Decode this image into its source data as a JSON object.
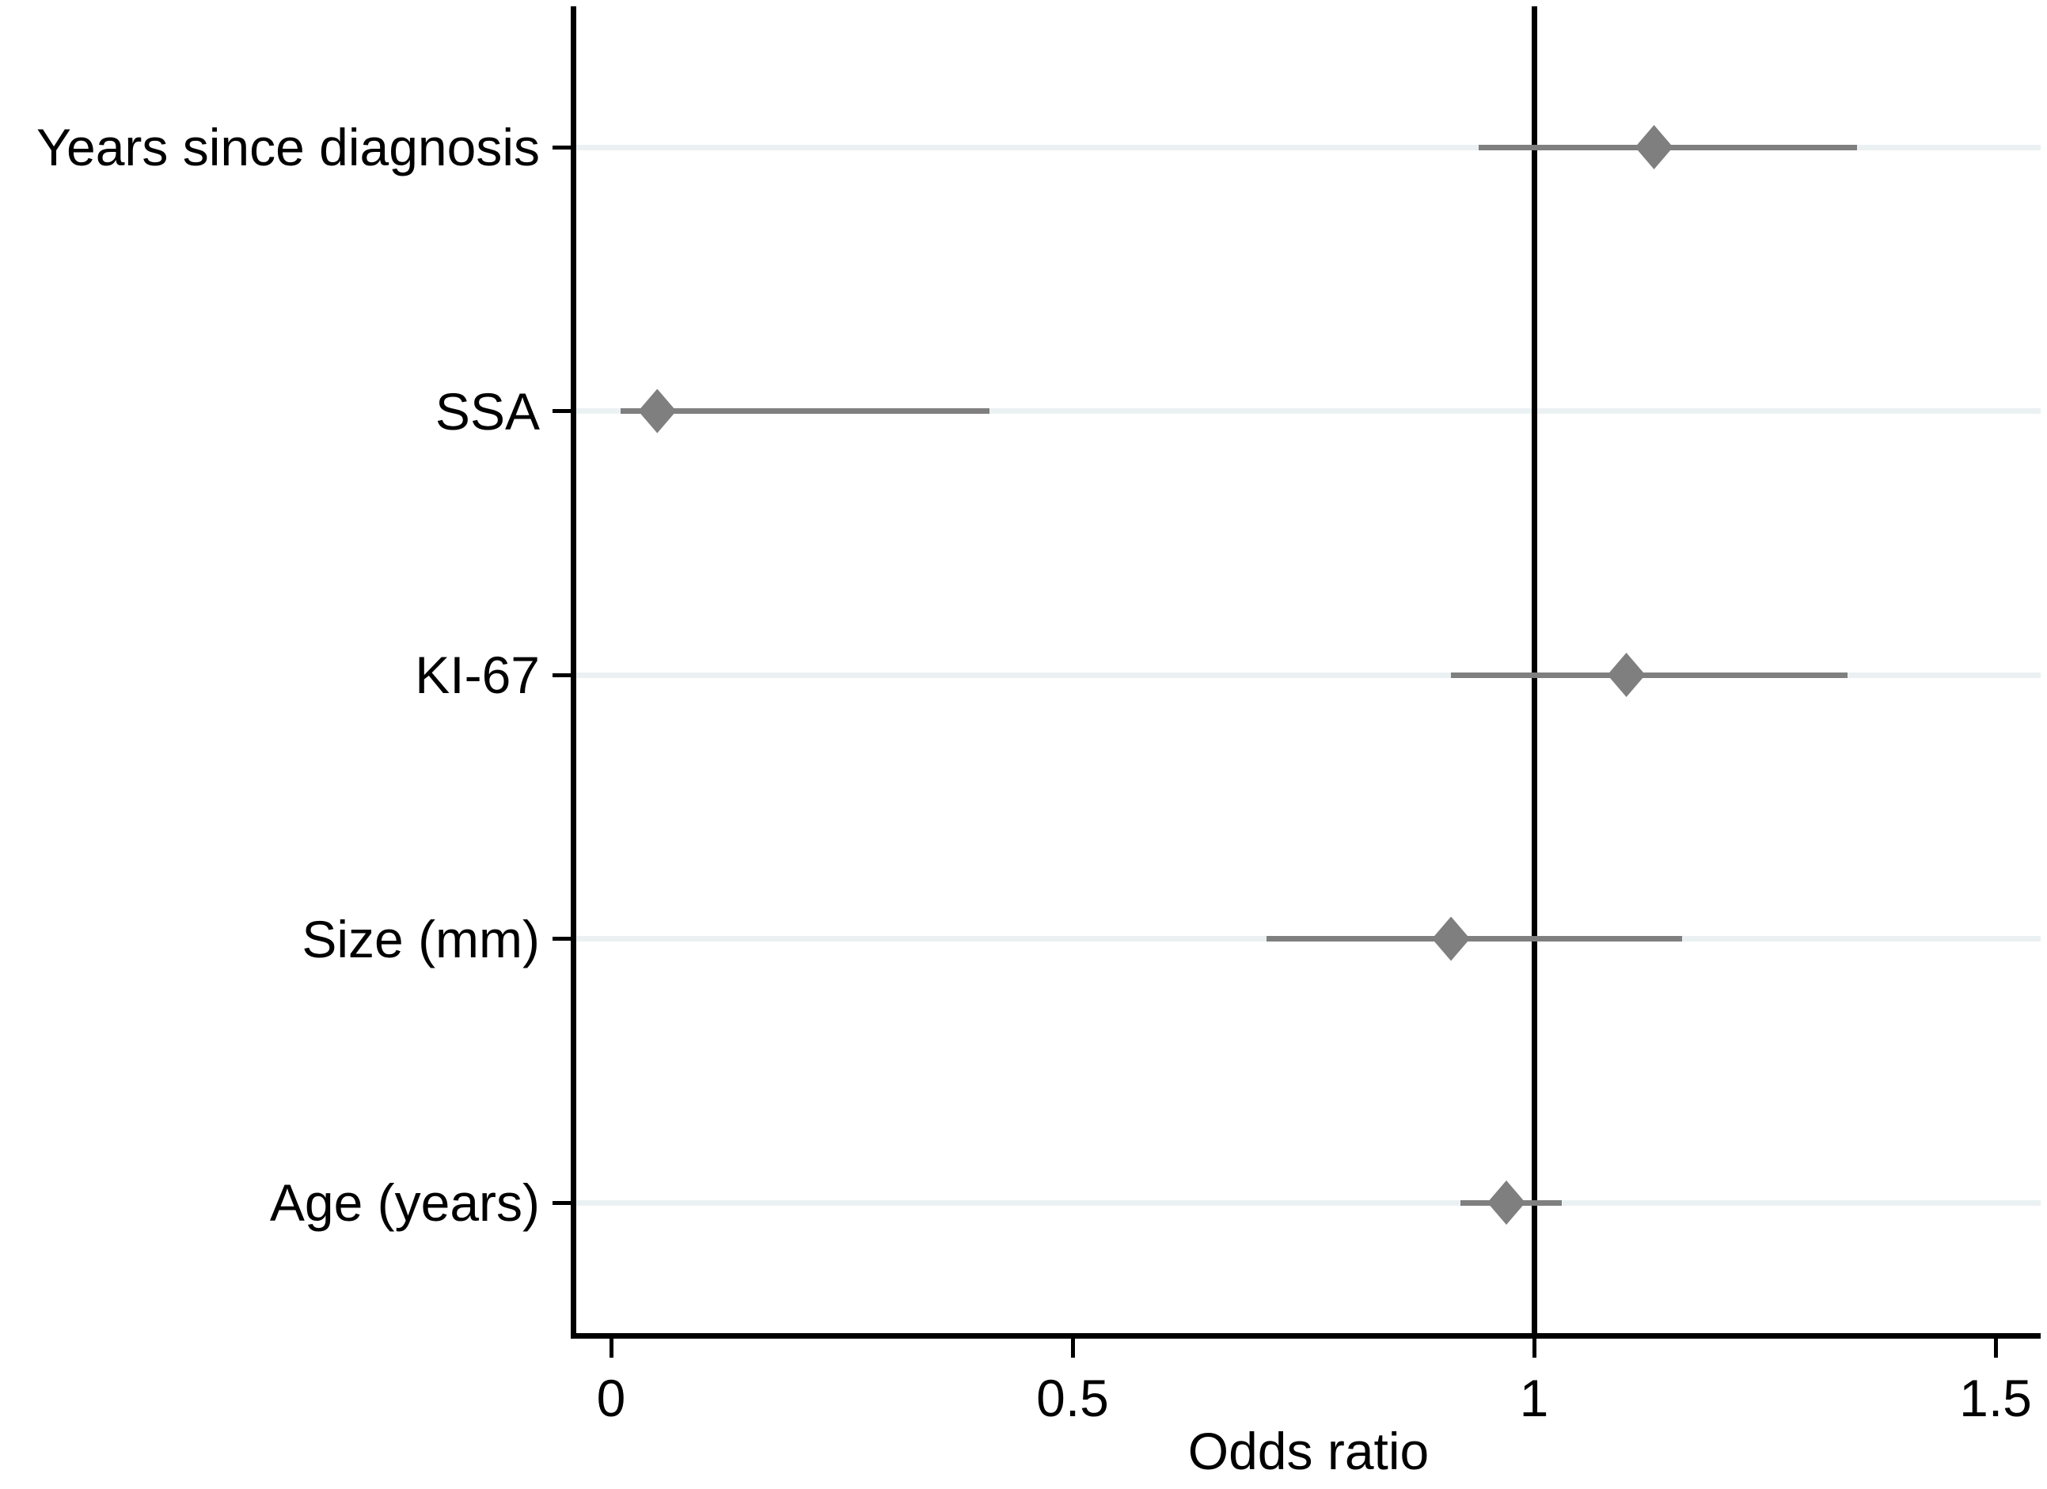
{
  "chart_data": {
    "type": "scatter",
    "subtype": "forest-plot",
    "title": "",
    "xlabel": "Odds ratio",
    "ylabel": "",
    "xlim": [
      -0.04,
      1.55
    ],
    "x_ticks": [
      0,
      0.5,
      1,
      1.5
    ],
    "x_tick_labels": [
      "0",
      "0.5",
      "1",
      "1.5"
    ],
    "reference_line_x": 1,
    "grid": "light horizontal gridline at each category row",
    "legend": null,
    "marker_shape": "diamond",
    "categories": [
      "Years since diagnosis",
      "SSA",
      "KI-67",
      "Size (mm)",
      "Age (years)"
    ],
    "points": [
      {
        "category": "Years since diagnosis",
        "odds_ratio": 1.13,
        "ci_low": 0.94,
        "ci_high": 1.35
      },
      {
        "category": "SSA",
        "odds_ratio": 0.05,
        "ci_low": 0.01,
        "ci_high": 0.41
      },
      {
        "category": "KI-67",
        "odds_ratio": 1.1,
        "ci_low": 0.91,
        "ci_high": 1.34
      },
      {
        "category": "Size (mm)",
        "odds_ratio": 0.91,
        "ci_low": 0.71,
        "ci_high": 1.16
      },
      {
        "category": "Age (years)",
        "odds_ratio": 0.97,
        "ci_low": 0.92,
        "ci_high": 1.03
      }
    ],
    "colors": {
      "marker": "#7f7f7f",
      "ci_line": "#7f7f7f",
      "gridline": "#ebf1f3",
      "axis": "#000000",
      "reference_line": "#000000",
      "background": "#ffffff",
      "text": "#000000"
    }
  }
}
